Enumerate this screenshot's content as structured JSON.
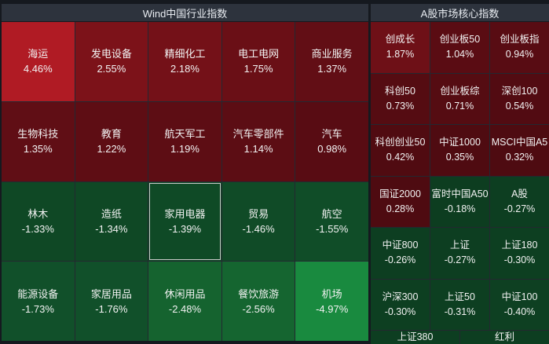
{
  "left_panel": {
    "title": "Wind中国行业指数",
    "tiles": [
      {
        "name": "海运",
        "change": "4.46%",
        "color": "#b01b24"
      },
      {
        "name": "发电设备",
        "change": "2.55%",
        "color": "#7c1219"
      },
      {
        "name": "精细化工",
        "change": "2.18%",
        "color": "#741118"
      },
      {
        "name": "电工电网",
        "change": "1.75%",
        "color": "#6a0f16"
      },
      {
        "name": "商业服务",
        "change": "1.37%",
        "color": "#620e15"
      },
      {
        "name": "生物科技",
        "change": "1.35%",
        "color": "#600e15"
      },
      {
        "name": "教育",
        "change": "1.22%",
        "color": "#5e0d14"
      },
      {
        "name": "航天军工",
        "change": "1.19%",
        "color": "#5d0d14"
      },
      {
        "name": "汽车零部件",
        "change": "1.14%",
        "color": "#5c0d14"
      },
      {
        "name": "汽车",
        "change": "0.98%",
        "color": "#580c13"
      },
      {
        "name": "林木",
        "change": "-1.33%",
        "color": "#0f4825"
      },
      {
        "name": "造纸",
        "change": "-1.34%",
        "color": "#0f4825"
      },
      {
        "name": "家用电器",
        "change": "-1.39%",
        "color": "#0f4a26",
        "selected": true
      },
      {
        "name": "贸易",
        "change": "-1.46%",
        "color": "#104b27"
      },
      {
        "name": "航空",
        "change": "-1.55%",
        "color": "#104d28"
      },
      {
        "name": "能源设备",
        "change": "-1.73%",
        "color": "#11502a"
      },
      {
        "name": "家居用品",
        "change": "-1.76%",
        "color": "#11502a"
      },
      {
        "name": "休闲用品",
        "change": "-2.48%",
        "color": "#15632f"
      },
      {
        "name": "餐饮旅游",
        "change": "-2.56%",
        "color": "#156530"
      },
      {
        "name": "机场",
        "change": "-4.97%",
        "color": "#198a3f"
      }
    ]
  },
  "right_panel": {
    "title": "A股市场核心指数",
    "tiles": [
      {
        "name": "创成长",
        "change": "1.87%",
        "color": "#6e1017"
      },
      {
        "name": "创业板50",
        "change": "1.04%",
        "color": "#5a0c13"
      },
      {
        "name": "创业板指",
        "change": "0.94%",
        "color": "#580c13"
      },
      {
        "name": "科创50",
        "change": "0.73%",
        "color": "#550c12"
      },
      {
        "name": "创业板综",
        "change": "0.71%",
        "color": "#550c12"
      },
      {
        "name": "深创100",
        "change": "0.54%",
        "color": "#520b12"
      },
      {
        "name": "科创创业50",
        "change": "0.42%",
        "color": "#500b11"
      },
      {
        "name": "中证1000",
        "change": "0.35%",
        "color": "#4f0b11"
      },
      {
        "name": "MSCI中国A5",
        "change": "0.32%",
        "color": "#4e0b11"
      },
      {
        "name": "国证2000",
        "change": "0.28%",
        "color": "#4e0b11"
      },
      {
        "name": "富时中国A50",
        "change": "-0.18%",
        "color": "#0d3d20"
      },
      {
        "name": "A股",
        "change": "-0.27%",
        "color": "#0d3e21"
      },
      {
        "name": "中证800",
        "change": "-0.26%",
        "color": "#0d3e21"
      },
      {
        "name": "上证",
        "change": "-0.27%",
        "color": "#0d3e21"
      },
      {
        "name": "上证180",
        "change": "-0.30%",
        "color": "#0d3f21"
      },
      {
        "name": "沪深300",
        "change": "-0.30%",
        "color": "#0d3f21"
      },
      {
        "name": "上证50",
        "change": "-0.31%",
        "color": "#0d3f21"
      },
      {
        "name": "中证100",
        "change": "-0.40%",
        "color": "#0e4022"
      }
    ],
    "bottom_tiles": [
      {
        "name": "上证380",
        "color": "#0d3e21"
      },
      {
        "name": "红利",
        "color": "#0d3e21"
      }
    ]
  }
}
